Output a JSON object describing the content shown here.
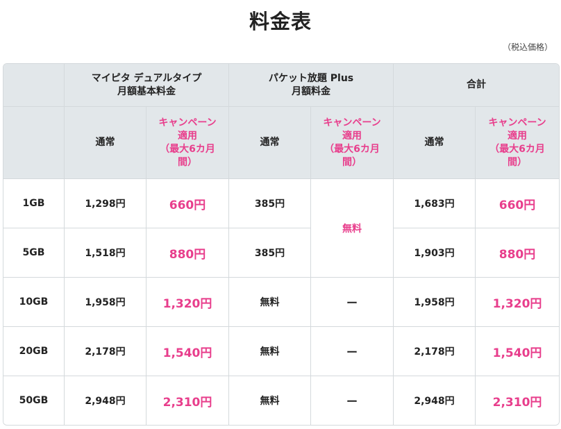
{
  "title": "料金表",
  "tax_note": "（税込価格）",
  "headers": {
    "plan": "マイピタ デュアルタイプ",
    "plan_sub": "月額基本料金",
    "packet": "パケット放題 Plus",
    "packet_sub": "月額料金",
    "total": "合計"
  },
  "subheaders": {
    "normal": "通常",
    "campaign": "キャンペーン",
    "campaign_apply": "適用",
    "campaign_period": "（最大6カ月",
    "campaign_period2": "間）"
  },
  "campaign_period_a": "（最大6カ月",
  "campaign_period_b": "間）",
  "free_merged": "無料",
  "rows": [
    {
      "gb": "1GB",
      "plan_normal": "1,298円",
      "plan_campaign": "660円",
      "packet_normal": "385円",
      "total_normal": "1,683円",
      "total_campaign": "660円"
    },
    {
      "gb": "5GB",
      "plan_normal": "1,518円",
      "plan_campaign": "880円",
      "packet_normal": "385円",
      "total_normal": "1,903円",
      "total_campaign": "880円"
    },
    {
      "gb": "10GB",
      "plan_normal": "1,958円",
      "plan_campaign": "1,320円",
      "packet_normal": "無料",
      "packet_campaign": "ー",
      "total_normal": "1,958円",
      "total_campaign": "1,320円"
    },
    {
      "gb": "20GB",
      "plan_normal": "2,178円",
      "plan_campaign": "1,540円",
      "packet_normal": "無料",
      "packet_campaign": "ー",
      "total_normal": "2,178円",
      "total_campaign": "1,540円"
    },
    {
      "gb": "50GB",
      "plan_normal": "2,948円",
      "plan_campaign": "2,310円",
      "packet_normal": "無料",
      "packet_campaign": "ー",
      "total_normal": "2,948円",
      "total_campaign": "2,310円"
    }
  ]
}
